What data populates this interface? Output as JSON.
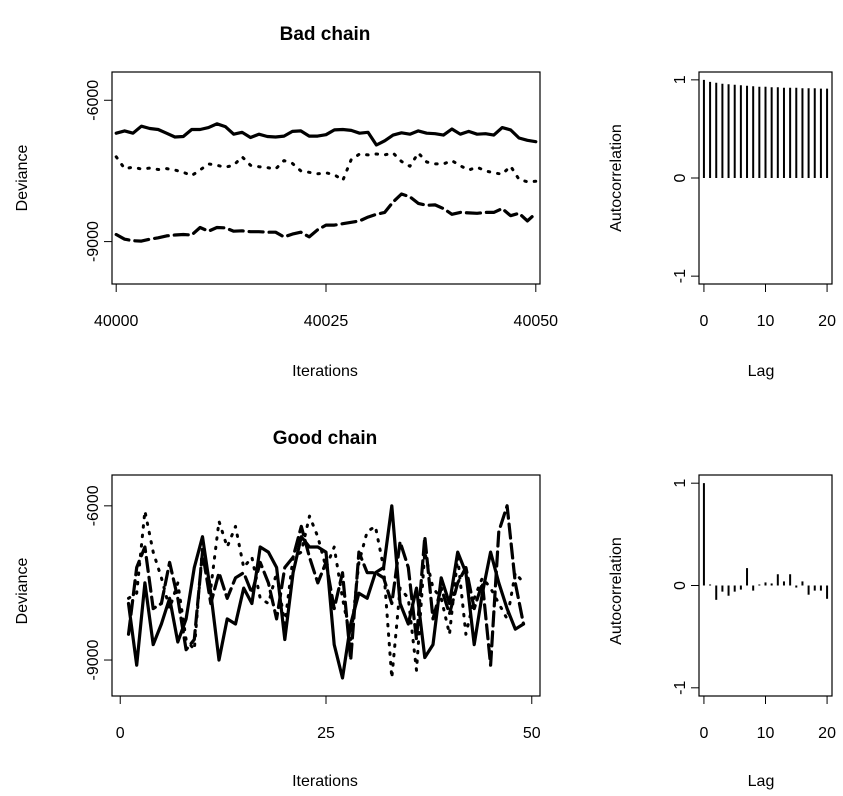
{
  "chart_data": [
    {
      "id": "bad-trace",
      "type": "line",
      "title": "Bad chain",
      "xlabel": "Iterations",
      "ylabel": "Deviance",
      "xlim": [
        39999.5,
        40050.5
      ],
      "ylim": [
        -9900,
        -5400
      ],
      "xticks": [
        40000,
        40025,
        40050
      ],
      "yticks": [
        -6000,
        -9000
      ],
      "x_start": 40000,
      "series": [
        {
          "line_style": "solid",
          "values": [
            -6700,
            -6650,
            -6700,
            -6550,
            -6600,
            -6620,
            -6700,
            -6780,
            -6770,
            -6620,
            -6620,
            -6580,
            -6500,
            -6560,
            -6720,
            -6680,
            -6790,
            -6720,
            -6770,
            -6780,
            -6760,
            -6660,
            -6650,
            -6760,
            -6760,
            -6730,
            -6630,
            -6620,
            -6640,
            -6700,
            -6680,
            -6950,
            -6860,
            -6740,
            -6690,
            -6720,
            -6650,
            -6700,
            -6710,
            -6740,
            -6610,
            -6720,
            -6660,
            -6720,
            -6710,
            -6740,
            -6580,
            -6630,
            -6800,
            -6850,
            -6880
          ]
        },
        {
          "line_style": "dotted",
          "values": [
            -7200,
            -7450,
            -7420,
            -7460,
            -7440,
            -7470,
            -7450,
            -7480,
            -7530,
            -7600,
            -7480,
            -7350,
            -7380,
            -7420,
            -7380,
            -7200,
            -7380,
            -7410,
            -7430,
            -7460,
            -7280,
            -7340,
            -7500,
            -7530,
            -7560,
            -7540,
            -7580,
            -7700,
            -7260,
            -7140,
            -7160,
            -7140,
            -7160,
            -7120,
            -7300,
            -7400,
            -7120,
            -7310,
            -7350,
            -7350,
            -7280,
            -7390,
            -7480,
            -7420,
            -7500,
            -7540,
            -7570,
            -7400,
            -7680,
            -7730,
            -7720
          ]
        },
        {
          "line_style": "dashed",
          "values": [
            -8850,
            -8950,
            -8980,
            -8990,
            -8950,
            -8920,
            -8880,
            -8860,
            -8850,
            -8860,
            -8700,
            -8780,
            -8700,
            -8710,
            -8780,
            -8770,
            -8790,
            -8790,
            -8800,
            -8800,
            -8900,
            -8840,
            -8800,
            -8900,
            -8750,
            -8650,
            -8650,
            -8620,
            -8590,
            -8560,
            -8480,
            -8420,
            -8380,
            -8160,
            -7990,
            -8050,
            -8190,
            -8230,
            -8220,
            -8300,
            -8420,
            -8380,
            -8390,
            -8400,
            -8380,
            -8380,
            -8300,
            -8450,
            -8400,
            -8560,
            -8400
          ]
        }
      ]
    },
    {
      "id": "bad-acf",
      "type": "bar",
      "title": "",
      "xlabel": "Lag",
      "ylabel": "Autocorrelation",
      "xlim": [
        -0.8,
        20.8
      ],
      "ylim": [
        -1.08,
        1.08
      ],
      "xticks": [
        0,
        10,
        20
      ],
      "yticks": [
        1,
        0,
        -1
      ],
      "lags": [
        0,
        1,
        2,
        3,
        4,
        5,
        6,
        7,
        8,
        9,
        10,
        11,
        12,
        13,
        14,
        15,
        16,
        17,
        18,
        19,
        20
      ],
      "values": [
        1.0,
        0.98,
        0.97,
        0.96,
        0.955,
        0.95,
        0.945,
        0.94,
        0.935,
        0.93,
        0.93,
        0.925,
        0.925,
        0.92,
        0.92,
        0.92,
        0.915,
        0.915,
        0.915,
        0.91,
        0.91
      ]
    },
    {
      "id": "good-trace",
      "type": "line",
      "title": "Good chain",
      "xlabel": "Iterations",
      "ylabel": "Deviance",
      "xlim": [
        -1,
        51
      ],
      "ylim": [
        -9700,
        -5400
      ],
      "xticks": [
        0,
        25,
        50
      ],
      "yticks": [
        -6000,
        -9000
      ],
      "x_start": 1,
      "series": [
        {
          "line_style": "solid",
          "values": [
            -7900,
            -9100,
            -7500,
            -8700,
            -8300,
            -7800,
            -8650,
            -8200,
            -7200,
            -6600,
            -7700,
            -9000,
            -8200,
            -8300,
            -7600,
            -7900,
            -6800,
            -6900,
            -7200,
            -8600,
            -7300,
            -6600,
            -6800,
            -6800,
            -6900,
            -8700,
            -9350,
            -8300,
            -7700,
            -7800,
            -7300,
            -7200,
            -6000,
            -7900,
            -8300,
            -7600,
            -8950,
            -8700,
            -7400,
            -7900,
            -6900,
            -7300,
            -8700,
            -7700,
            -6900,
            -7500,
            -8000,
            -8400,
            -8300
          ]
        },
        {
          "line_style": "dotted",
          "values": [
            -7800,
            -7700,
            -6100,
            -6900,
            -7400,
            -8000,
            -7500,
            -8600,
            -8800,
            -6800,
            -7600,
            -6300,
            -6800,
            -6400,
            -7200,
            -7000,
            -7800,
            -7900,
            -7300,
            -8300,
            -7000,
            -6900,
            -6200,
            -6600,
            -7200,
            -6800,
            -7800,
            -8600,
            -7100,
            -6500,
            -6400,
            -7200,
            -9350,
            -7600,
            -7800,
            -9200,
            -6900,
            -7600,
            -7800,
            -8500,
            -7000,
            -8500,
            -7800,
            -7400,
            -7600,
            -7900,
            -8200,
            -7300,
            -7500
          ]
        },
        {
          "line_style": "dashed",
          "values": [
            -8500,
            -7200,
            -6800,
            -8000,
            -7900,
            -7100,
            -7800,
            -8800,
            -8600,
            -6900,
            -7900,
            -7300,
            -7800,
            -7400,
            -7300,
            -7700,
            -7100,
            -7500,
            -8200,
            -7200,
            -7000,
            -6400,
            -7000,
            -7500,
            -7100,
            -8000,
            -7300,
            -9000,
            -6900,
            -7300,
            -7300,
            -7400,
            -7900,
            -6700,
            -7200,
            -8600,
            -6600,
            -8200,
            -7600,
            -8100,
            -7500,
            -7200,
            -8000,
            -7500,
            -9100,
            -6500,
            -6000,
            -7500,
            -8300
          ]
        }
      ]
    },
    {
      "id": "good-acf",
      "type": "bar",
      "title": "",
      "xlabel": "Lag",
      "ylabel": "Autocorrelation",
      "xlim": [
        -0.8,
        20.8
      ],
      "ylim": [
        -1.08,
        1.08
      ],
      "xticks": [
        0,
        10,
        20
      ],
      "yticks": [
        1,
        0,
        -1
      ],
      "lags": [
        0,
        1,
        2,
        3,
        4,
        5,
        6,
        7,
        8,
        9,
        10,
        11,
        12,
        13,
        14,
        15,
        16,
        17,
        18,
        19,
        20
      ],
      "values": [
        1.0,
        0.01,
        -0.14,
        -0.06,
        -0.1,
        -0.06,
        -0.04,
        0.17,
        -0.05,
        0.01,
        0.03,
        0.02,
        0.11,
        0.04,
        0.11,
        -0.02,
        0.04,
        -0.09,
        -0.05,
        -0.05,
        -0.13
      ]
    }
  ]
}
